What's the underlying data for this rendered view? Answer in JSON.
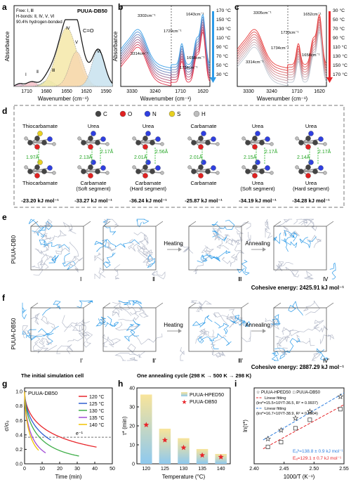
{
  "panel_labels": [
    "a",
    "b",
    "c",
    "d",
    "e",
    "f",
    "g",
    "h",
    "i"
  ],
  "panel_a": {
    "sample": "PUUA-DB50",
    "legend": [
      "Free: Ⅰ, Ⅲ",
      "H-bonds: Ⅱ, Ⅳ, Ⅴ, Ⅵ",
      "90.4% hydrogen-bonded"
    ],
    "peak_label": "C=O",
    "peak_numerals": [
      "Ⅰ",
      "Ⅱ",
      "Ⅲ",
      "Ⅳ",
      "Ⅴ",
      "Ⅵ"
    ],
    "colors": [
      "#e5bcd2",
      "#f3bfc7",
      "#c7e3c1",
      "#f5e7a8",
      "#f7d8b0",
      "#c8e2ee"
    ],
    "ylabel": "Absorbance",
    "xlabel": "Wavenumber (cm⁻¹)",
    "xticks": [
      "1710",
      "1680",
      "1650",
      "1620",
      "1590"
    ]
  },
  "panel_b": {
    "ylabel": "Absorbance",
    "xlabel": "Wavenumber (cm⁻¹)",
    "xticks": [
      "3330",
      "3240",
      "1710",
      "1620"
    ],
    "annotations": [
      "3302cm⁻¹",
      "3314cm⁻¹",
      "1729cm⁻¹",
      "1734cm⁻¹",
      "1643cm⁻¹",
      "1658cm⁻¹"
    ],
    "temps": [
      "170 °C",
      "150 °C",
      "130 °C",
      "110 °C",
      "90 °C",
      "70 °C",
      "50 °C",
      "30 °C"
    ],
    "arrow_color": "#2d9be8"
  },
  "panel_c": {
    "xlabel": "Wavenumber (cm⁻¹)",
    "xticks": [
      "3330",
      "3240",
      "1710",
      "1620"
    ],
    "annotations": [
      "3305cm⁻¹",
      "3314cm⁻¹",
      "1730cm⁻¹",
      "1734cm⁻¹",
      "1652cm⁻¹",
      "1658cm⁻¹"
    ],
    "temps": [
      "30 °C",
      "50 °C",
      "70 °C",
      "90 °C",
      "110 °C",
      "130 °C",
      "150 °C",
      "170 °C"
    ]
  },
  "panel_d": {
    "legend": [
      {
        "label": "C",
        "color": "#444444"
      },
      {
        "label": "O",
        "color": "#e02020"
      },
      {
        "label": "N",
        "color": "#2f3fe0"
      },
      {
        "label": "S",
        "color": "#e8d020"
      },
      {
        "label": "H",
        "color": "#bdbdbd"
      }
    ],
    "pairs": [
      {
        "top": "Thiocarbamate",
        "bottom": "Thiocarbamate",
        "bonds": [
          "1.97Å"
        ],
        "energy": "-23.20 kJ mol⁻¹"
      },
      {
        "top": "Urea",
        "bottom": "Carbamate\n(Soft segment)",
        "bonds": [
          "2.13Å",
          "2.17Å"
        ],
        "energy": "-33.27 kJ mol⁻¹"
      },
      {
        "top": "Urea",
        "bottom": "Carbamate\n(Hard segment)",
        "bonds": [
          "2.01Å",
          "2.56Å"
        ],
        "energy": "-36.24 kJ mol⁻¹"
      },
      {
        "top": "Carbamate",
        "bottom": "Carbamate",
        "bonds": [
          "2.01Å"
        ],
        "energy": "-25.87 kJ mol⁻¹"
      },
      {
        "top": "Urea",
        "bottom": "Urea\n(Soft segment)",
        "bonds": [
          "2.15Å",
          "2.17Å"
        ],
        "energy": "-34.19 kJ mol⁻¹"
      },
      {
        "top": "Urea",
        "bottom": "Urea\n(Hard segment)",
        "bonds": [
          "2.14Å",
          "2.17Å"
        ],
        "energy": "-34.28 kJ mol⁻¹"
      }
    ]
  },
  "panel_e": {
    "sample": "PUUA-DB0",
    "stages": [
      "Ⅰ",
      "Ⅱ",
      "Ⅲ",
      "Ⅳ"
    ],
    "arrows": [
      "Heating",
      "Annealing"
    ],
    "energy": "Cohesive energy: 2425.91 kJ mol⁻¹"
  },
  "panel_f": {
    "sample": "PUUA-DB50",
    "stages": [
      "Ⅰ'",
      "Ⅱ'",
      "Ⅲ'",
      "Ⅳ'"
    ],
    "arrows": [
      "Heating",
      "Annealing"
    ],
    "energy": "Cohesive energy: 2887.29 kJ mol⁻¹",
    "footer_left": "The initial simulation cell",
    "footer_right": "One annealing cycle (298 K → 500 K → 298 K)"
  },
  "chart_data": [
    {
      "panel": "g",
      "type": "line",
      "label": "PUUA-DB50",
      "xlabel": "Time (min)",
      "ylabel": "σ/σ₀",
      "xlim": [
        0,
        50
      ],
      "ylim": [
        0,
        1.05
      ],
      "xticks": [
        0,
        10,
        20,
        30,
        40,
        50
      ],
      "yticks": [
        0.0,
        0.2,
        0.4,
        0.6,
        0.8,
        1.0
      ],
      "reference": {
        "y": 0.3679,
        "label": "e⁻¹"
      },
      "legend_position": "top-right",
      "series": [
        {
          "name": "120 °C",
          "color": "#e8262b",
          "tau": 20.5,
          "beta": 0.55,
          "end": 41
        },
        {
          "name": "125 °C",
          "color": "#2f5fd0",
          "tau": 12.5,
          "beta": 0.6,
          "end": 15
        },
        {
          "name": "130 °C",
          "color": "#3fae49",
          "tau": 8.5,
          "beta": 0.62,
          "end": 31
        },
        {
          "name": "135 °C",
          "color": "#a14bd6",
          "tau": 4.5,
          "beta": 0.65,
          "end": 12
        },
        {
          "name": "140 °C",
          "color": "#f2c300",
          "tau": 3.6,
          "beta": 0.65,
          "end": 8
        }
      ]
    },
    {
      "panel": "h",
      "type": "bar",
      "xlabel": "Temperature (°C)",
      "ylabel": "τ* (min)",
      "categories": [
        "120",
        "125",
        "130",
        "135",
        "140"
      ],
      "ylim": [
        0,
        40
      ],
      "yticks": [
        0,
        10,
        20,
        30,
        40
      ],
      "series": [
        {
          "name": "PUUA-HPED50",
          "values": [
            36.5,
            18.5,
            13.5,
            7.8,
            5.2
          ],
          "color_top": "#f8e49a",
          "color_bottom": "#8ec9ef"
        },
        {
          "name": "PUUA-DB50",
          "values": [
            20.5,
            12.5,
            8.5,
            4.5,
            3.6
          ],
          "color": "#e8262b"
        }
      ],
      "legend_position": "top-right"
    },
    {
      "panel": "i",
      "type": "scatter",
      "xlabel": "1000/T (K⁻¹)",
      "ylabel": "ln(τ*)",
      "xlim": [
        2.4,
        2.55
      ],
      "ylim": [
        0.5,
        4.0
      ],
      "xticks": [
        2.4,
        2.45,
        2.5,
        2.55
      ],
      "series": [
        {
          "name": "PUUA-HPED50",
          "marker": "star",
          "color": "#444444",
          "x": [
            2.423,
            2.445,
            2.469,
            2.493,
            2.544
          ],
          "y": [
            1.65,
            2.05,
            2.6,
            2.91,
            3.6
          ]
        },
        {
          "name": "PUUA-DB50",
          "marker": "square",
          "color": "#444444",
          "x": [
            2.423,
            2.445,
            2.469,
            2.493,
            2.544
          ],
          "y": [
            1.28,
            1.5,
            2.14,
            2.53,
            3.02
          ]
        }
      ],
      "fits": [
        {
          "name": "Linear fitting",
          "color": "#2f7fe0",
          "slope": 16.7,
          "intercept": -38.9,
          "equation": "(lnτ*=16.7×10³/T-38.9, R² = 0.9904)",
          "energy": "Eₐʰ=138.8 ± 0.9 kJ mol⁻¹"
        },
        {
          "name": "Linear fitting",
          "color": "#e8262b",
          "slope": 15.5,
          "intercept": -36.5,
          "equation": "(lnτ*=15.5×10³/T-36.5, R² = 0.9937)",
          "energy": "Eₐ=129.1 ± 0.7 kJ mol⁻¹"
        }
      ],
      "legend_position": "top-left"
    }
  ]
}
